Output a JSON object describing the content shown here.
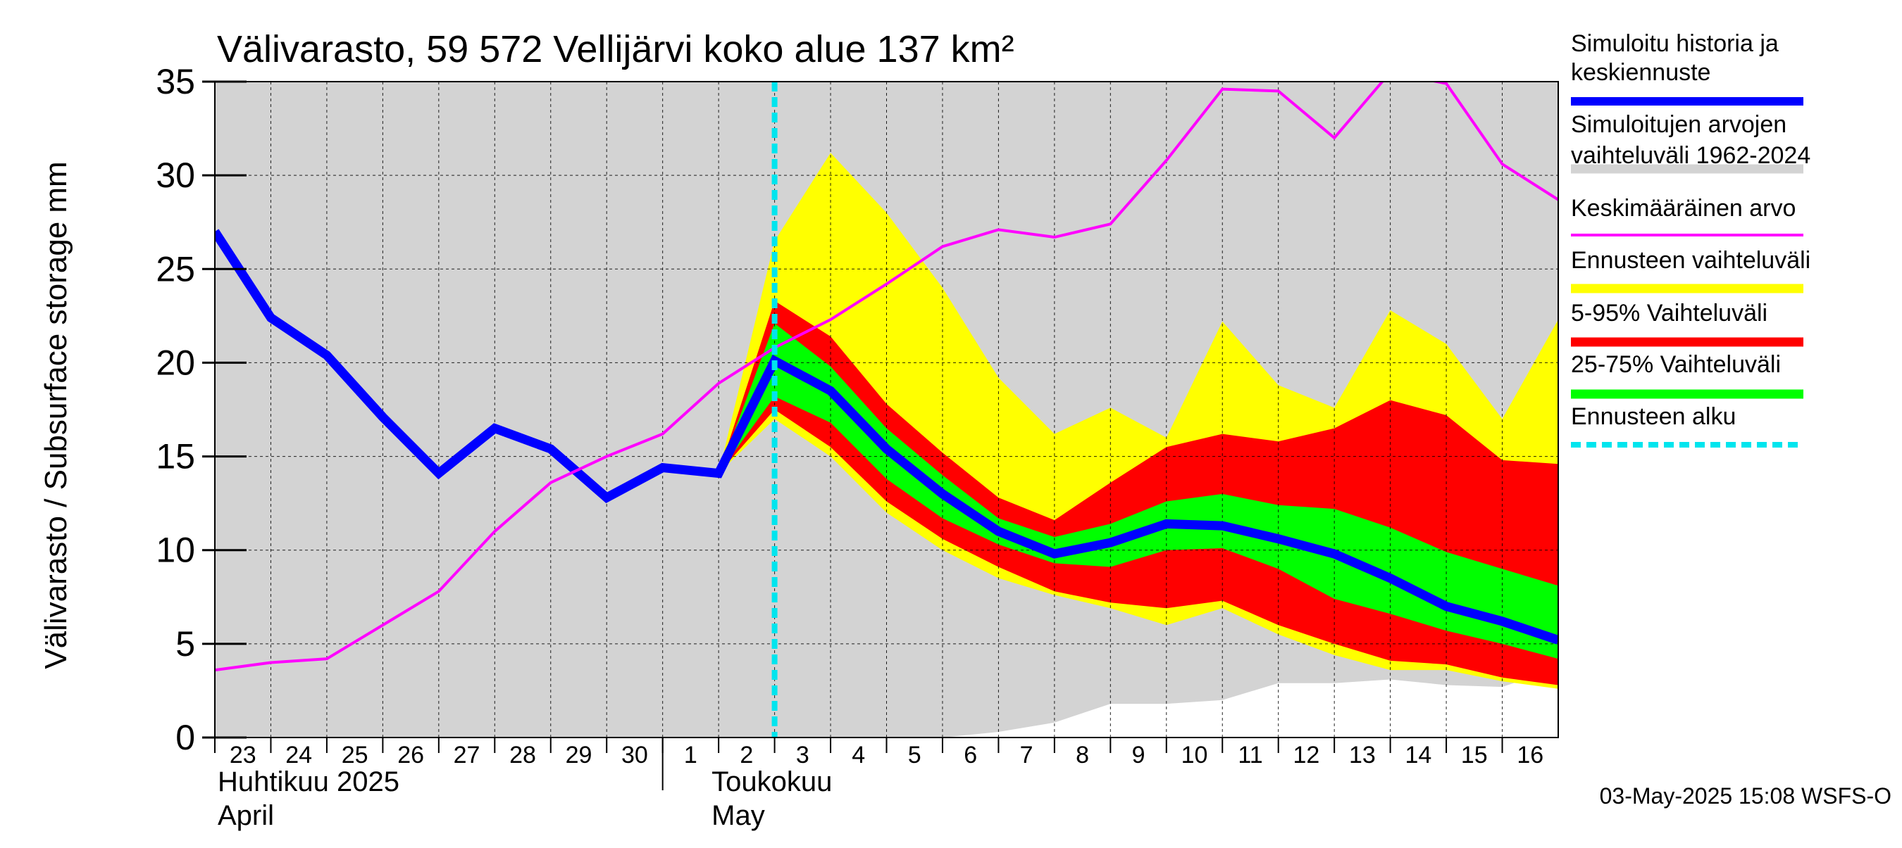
{
  "chart_data": {
    "type": "area",
    "title": "Välivarasto, 59 572 Vellijärvi koko alue 137 km²",
    "ylabel": "Välivarasto / Subsurface storage  mm",
    "ylim": [
      0,
      35
    ],
    "yticks": [
      0,
      5,
      10,
      15,
      20,
      25,
      30,
      35
    ],
    "grid": true,
    "legend_position": "right",
    "x_day_labels": [
      "23",
      "24",
      "25",
      "26",
      "27",
      "28",
      "29",
      "30",
      "1",
      "2",
      "3",
      "4",
      "5",
      "6",
      "7",
      "8",
      "9",
      "10",
      "11",
      "12",
      "13",
      "14",
      "15",
      "16"
    ],
    "x_month_labels": [
      {
        "label": "Huhtikuu  2025",
        "sublabel": "April",
        "start_index": 0
      },
      {
        "label": "Toukokuu",
        "sublabel": "May",
        "start_index": 9
      }
    ],
    "x_range": [
      0,
      24
    ],
    "forecast_start_x": 10.0,
    "historical_range": {
      "x": [
        0,
        1,
        2,
        3,
        4,
        5,
        6,
        7,
        8,
        9,
        10,
        11,
        12,
        13,
        14,
        15,
        16,
        17,
        18,
        19,
        20,
        21,
        22,
        23,
        24
      ],
      "upper": [
        35,
        35,
        35,
        35,
        35,
        35,
        35,
        35,
        35,
        35,
        35,
        35,
        35,
        35,
        35,
        35,
        35,
        35,
        35,
        35,
        35,
        35,
        35,
        35,
        35
      ],
      "lower": [
        0,
        0,
        0,
        0,
        0,
        0,
        0,
        0,
        0,
        0,
        0,
        0,
        0,
        0,
        0.3,
        0.8,
        1.8,
        1.8,
        2.0,
        2.9,
        2.9,
        3.1,
        2.8,
        2.7,
        3.7
      ]
    },
    "forecast_range": {
      "x": [
        9,
        10,
        11,
        12,
        13,
        14,
        15,
        16,
        17,
        18,
        19,
        20,
        21,
        22,
        23,
        24
      ],
      "upper": [
        14.1,
        26.5,
        31.2,
        28.0,
        24.0,
        19.2,
        16.2,
        17.6,
        16.0,
        22.2,
        18.8,
        17.6,
        22.8,
        21.0,
        17.0,
        22.3
      ],
      "lower": [
        14.1,
        17.0,
        15.0,
        12.0,
        10.0,
        8.5,
        7.6,
        6.9,
        6.0,
        6.9,
        5.5,
        4.4,
        3.6,
        3.6,
        3.0,
        2.6
      ]
    },
    "band_5_95": {
      "x": [
        9,
        10,
        11,
        12,
        13,
        14,
        15,
        16,
        17,
        18,
        19,
        20,
        21,
        22,
        23,
        24
      ],
      "upper": [
        14.1,
        23.3,
        21.4,
        17.8,
        15.2,
        12.8,
        11.6,
        13.6,
        15.5,
        16.2,
        15.8,
        16.5,
        18.0,
        17.2,
        14.8,
        14.6
      ],
      "lower": [
        14.1,
        17.5,
        15.5,
        12.6,
        10.6,
        9.1,
        7.8,
        7.2,
        6.9,
        7.3,
        6.0,
        5.0,
        4.1,
        3.9,
        3.2,
        2.8
      ]
    },
    "band_25_75": {
      "x": [
        9,
        10,
        11,
        12,
        13,
        14,
        15,
        16,
        17,
        18,
        19,
        20,
        21,
        22,
        23,
        24
      ],
      "upper": [
        14.1,
        22.1,
        19.8,
        16.5,
        14.0,
        11.7,
        10.7,
        11.4,
        12.6,
        13.0,
        12.4,
        12.2,
        11.2,
        9.9,
        9.0,
        8.1
      ],
      "lower": [
        14.1,
        18.2,
        16.8,
        13.8,
        11.7,
        10.3,
        9.3,
        9.1,
        10.0,
        10.1,
        9.0,
        7.4,
        6.6,
        5.7,
        5.0,
        4.2
      ]
    },
    "series": [
      {
        "name": "Simuloitu historia ja keskiennuste",
        "color": "#0000ff",
        "x": [
          0,
          1,
          2,
          3,
          4,
          5,
          6,
          7,
          8,
          9,
          10,
          11,
          12,
          13,
          14,
          15,
          16,
          17,
          18,
          19,
          20,
          21,
          22,
          23,
          24
        ],
        "values": [
          27.0,
          22.4,
          20.4,
          17.1,
          14.1,
          16.5,
          15.4,
          12.8,
          14.4,
          14.1,
          20.1,
          18.5,
          15.4,
          13.0,
          11.0,
          9.8,
          10.4,
          11.4,
          11.3,
          10.6,
          9.8,
          8.5,
          7.0,
          6.2,
          5.2
        ]
      },
      {
        "name": "Keskimääräinen arvo",
        "color": "#ff00ff",
        "x": [
          0,
          1,
          2,
          3,
          4,
          5,
          6,
          7,
          8,
          9,
          10,
          11,
          12,
          13,
          14,
          15,
          16,
          17,
          18,
          19,
          20,
          21,
          22,
          23,
          24
        ],
        "values": [
          3.6,
          4.0,
          4.2,
          6.0,
          7.8,
          11.0,
          13.6,
          15.0,
          16.2,
          18.9,
          20.8,
          22.3,
          24.2,
          26.2,
          27.1,
          26.7,
          27.4,
          30.8,
          34.6,
          34.5,
          32.0,
          35.5,
          34.9,
          30.6,
          28.7
        ]
      }
    ],
    "legend": [
      {
        "label": "Simuloitu historia ja keskiennuste",
        "color": "#0000ff",
        "style": "line"
      },
      {
        "label": "Simuloitujen arvojen vaihteluväli 1962-2024",
        "color": "#d3d3d3",
        "style": "band"
      },
      {
        "label": "Keskimääräinen arvo",
        "color": "#ff00ff",
        "style": "thin"
      },
      {
        "label": "Ennusteen vaihteluväli",
        "color": "#ffff00",
        "style": "band"
      },
      {
        "label": "5-95% Vaihteluväli",
        "color": "#ff0000",
        "style": "band"
      },
      {
        "label": "25-75% Vaihteluväli",
        "color": "#00ff00",
        "style": "band"
      },
      {
        "label": "Ennusteen alku",
        "color": "#00e5ee",
        "style": "dashed"
      }
    ],
    "colors": {
      "historical": "#d3d3d3",
      "forecast": "#ffff00",
      "band_5_95": "#ff0000",
      "band_25_75": "#00ff00",
      "median": "#0000ff",
      "mean": "#ff00ff",
      "forecast_start": "#00e5ee"
    }
  },
  "footer": {
    "timestamp": "03-May-2025 15:08 WSFS-O"
  }
}
